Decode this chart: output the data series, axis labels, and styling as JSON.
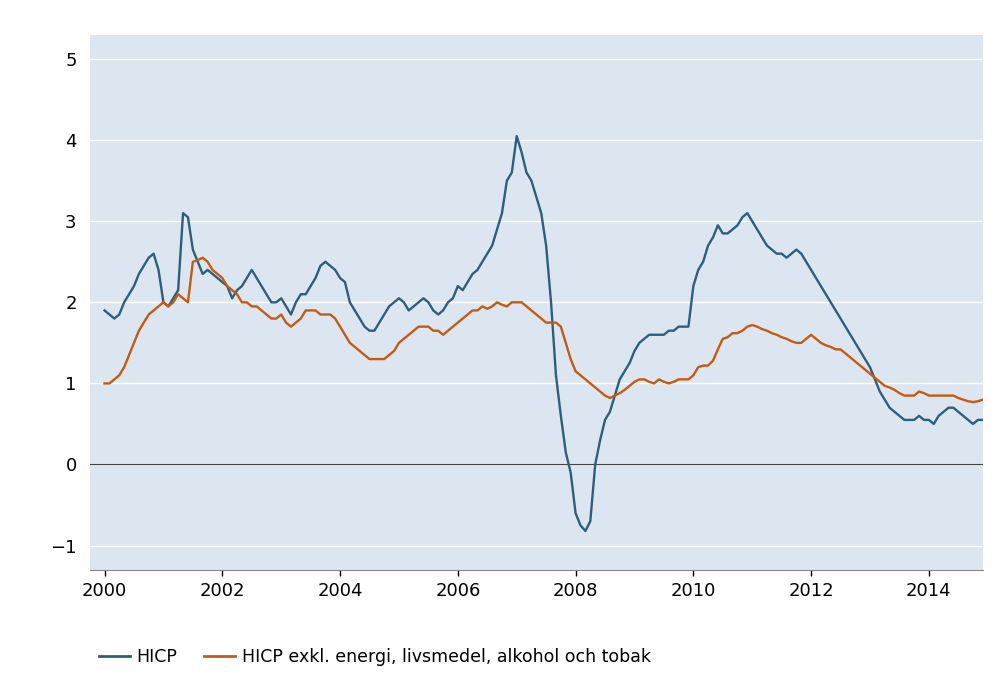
{
  "background_color": "#dce6f1",
  "outer_background": "#ffffff",
  "line1_color": "#2e5f7a",
  "line2_color": "#c55a11",
  "line1_label": "HICP",
  "line2_label": "HICP exkl. energi, livsmedel, alkohol och tobak",
  "ylim": [
    -1.3,
    5.3
  ],
  "yticks": [
    -1,
    0,
    1,
    2,
    3,
    4,
    5
  ],
  "grid_color": "#ffffff",
  "xtick_years": [
    2000,
    2002,
    2004,
    2006,
    2008,
    2010,
    2012,
    2014
  ],
  "xlim_start": 1999.75,
  "xlim_end": 2014.92,
  "hicp": [
    1.9,
    1.85,
    1.8,
    1.85,
    2.0,
    2.1,
    2.2,
    2.35,
    2.45,
    2.55,
    2.6,
    2.4,
    2.0,
    1.95,
    2.05,
    2.15,
    3.1,
    3.05,
    2.65,
    2.5,
    2.35,
    2.4,
    2.35,
    2.3,
    2.25,
    2.2,
    2.05,
    2.15,
    2.2,
    2.3,
    2.4,
    2.3,
    2.2,
    2.1,
    2.0,
    2.0,
    2.05,
    1.95,
    1.85,
    2.0,
    2.1,
    2.1,
    2.2,
    2.3,
    2.45,
    2.5,
    2.45,
    2.4,
    2.3,
    2.25,
    2.0,
    1.9,
    1.8,
    1.7,
    1.65,
    1.65,
    1.75,
    1.85,
    1.95,
    2.0,
    2.05,
    2.0,
    1.9,
    1.95,
    2.0,
    2.05,
    2.0,
    1.9,
    1.85,
    1.9,
    2.0,
    2.05,
    2.2,
    2.15,
    2.25,
    2.35,
    2.4,
    2.5,
    2.6,
    2.7,
    2.9,
    3.1,
    3.5,
    3.6,
    4.05,
    3.85,
    3.6,
    3.5,
    3.3,
    3.1,
    2.7,
    2.0,
    1.1,
    0.6,
    0.15,
    -0.1,
    -0.6,
    -0.75,
    -0.82,
    -0.7,
    0.0,
    0.3,
    0.55,
    0.65,
    0.85,
    1.05,
    1.15,
    1.25,
    1.4,
    1.5,
    1.55,
    1.6,
    1.6,
    1.6,
    1.6,
    1.65,
    1.65,
    1.7,
    1.7,
    1.7,
    2.2,
    2.4,
    2.5,
    2.7,
    2.8,
    2.95,
    2.85,
    2.85,
    2.9,
    2.95,
    3.05,
    3.1,
    3.0,
    2.9,
    2.8,
    2.7,
    2.65,
    2.6,
    2.6,
    2.55,
    2.6,
    2.65,
    2.6,
    2.5,
    2.4,
    2.3,
    2.2,
    2.1,
    2.0,
    1.9,
    1.8,
    1.7,
    1.6,
    1.5,
    1.4,
    1.3,
    1.2,
    1.05,
    0.9,
    0.8,
    0.7,
    0.65,
    0.6,
    0.55,
    0.55,
    0.55,
    0.6,
    0.55,
    0.55,
    0.5,
    0.6,
    0.65,
    0.7,
    0.7,
    0.65,
    0.6,
    0.55,
    0.5,
    0.55,
    0.55
  ],
  "hicp_ex": [
    1.0,
    1.0,
    1.05,
    1.1,
    1.2,
    1.35,
    1.5,
    1.65,
    1.75,
    1.85,
    1.9,
    1.95,
    2.0,
    1.95,
    2.0,
    2.1,
    2.05,
    2.0,
    2.5,
    2.52,
    2.55,
    2.5,
    2.4,
    2.35,
    2.3,
    2.2,
    2.15,
    2.1,
    2.0,
    2.0,
    1.95,
    1.95,
    1.9,
    1.85,
    1.8,
    1.8,
    1.85,
    1.75,
    1.7,
    1.75,
    1.8,
    1.9,
    1.9,
    1.9,
    1.85,
    1.85,
    1.85,
    1.8,
    1.7,
    1.6,
    1.5,
    1.45,
    1.4,
    1.35,
    1.3,
    1.3,
    1.3,
    1.3,
    1.35,
    1.4,
    1.5,
    1.55,
    1.6,
    1.65,
    1.7,
    1.7,
    1.7,
    1.65,
    1.65,
    1.6,
    1.65,
    1.7,
    1.75,
    1.8,
    1.85,
    1.9,
    1.9,
    1.95,
    1.92,
    1.95,
    2.0,
    1.97,
    1.95,
    2.0,
    2.0,
    2.0,
    1.95,
    1.9,
    1.85,
    1.8,
    1.75,
    1.75,
    1.75,
    1.7,
    1.5,
    1.3,
    1.15,
    1.1,
    1.05,
    1.0,
    0.95,
    0.9,
    0.85,
    0.82,
    0.85,
    0.88,
    0.92,
    0.97,
    1.02,
    1.05,
    1.05,
    1.02,
    1.0,
    1.05,
    1.02,
    1.0,
    1.02,
    1.05,
    1.05,
    1.05,
    1.1,
    1.2,
    1.22,
    1.22,
    1.28,
    1.42,
    1.55,
    1.57,
    1.62,
    1.62,
    1.65,
    1.7,
    1.72,
    1.7,
    1.67,
    1.65,
    1.62,
    1.6,
    1.57,
    1.55,
    1.52,
    1.5,
    1.5,
    1.55,
    1.6,
    1.55,
    1.5,
    1.47,
    1.45,
    1.42,
    1.42,
    1.37,
    1.32,
    1.27,
    1.22,
    1.17,
    1.12,
    1.07,
    1.02,
    0.97,
    0.95,
    0.92,
    0.88,
    0.85,
    0.85,
    0.85,
    0.9,
    0.88,
    0.85,
    0.85,
    0.85,
    0.85,
    0.85,
    0.85,
    0.82,
    0.8,
    0.78,
    0.77,
    0.78,
    0.8
  ],
  "n_months": 180,
  "start_year": 2000,
  "start_month": 1
}
